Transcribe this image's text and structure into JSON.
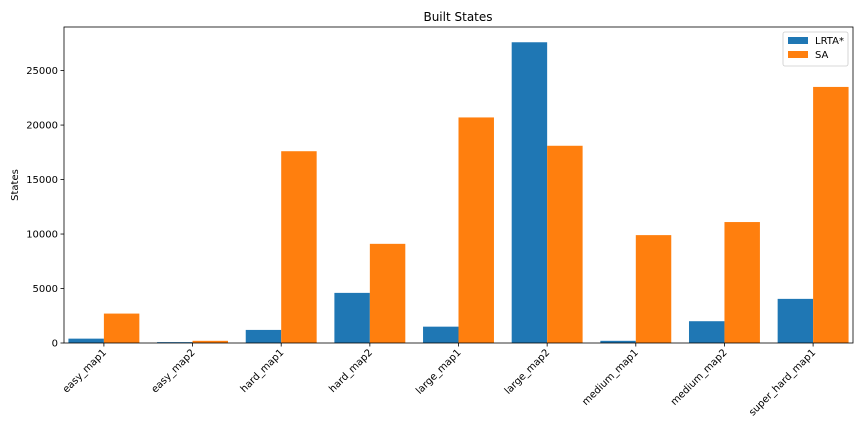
{
  "chart_data": {
    "type": "bar",
    "title": "Built States",
    "xlabel": "",
    "ylabel": "States",
    "categories": [
      "easy_map1",
      "easy_map2",
      "hard_map1",
      "hard_map2",
      "large_map1",
      "large_map2",
      "medium_map1",
      "medium_map2",
      "super_hard_map1"
    ],
    "series": [
      {
        "name": "LRTA*",
        "color": "#1f77b4",
        "values": [
          400,
          80,
          1200,
          4600,
          1500,
          27600,
          200,
          2000,
          4050
        ]
      },
      {
        "name": "SA",
        "color": "#ff7f0e",
        "values": [
          2700,
          200,
          17600,
          9100,
          20700,
          18100,
          9900,
          11100,
          23500
        ]
      }
    ],
    "ylim": [
      0,
      29000
    ],
    "yticks": [
      0,
      5000,
      10000,
      15000,
      20000,
      25000
    ],
    "grid": false,
    "legend": "top-right"
  }
}
